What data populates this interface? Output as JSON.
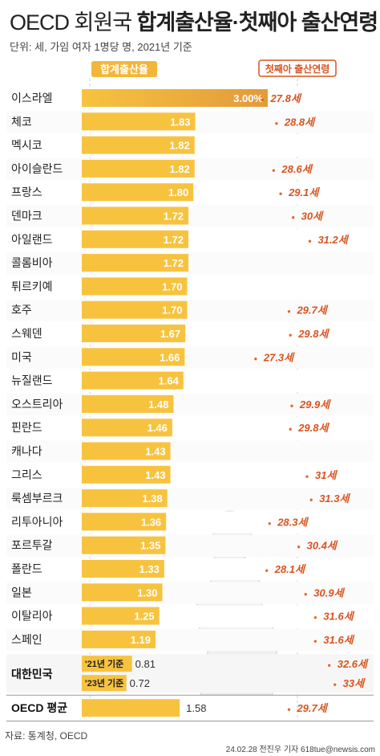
{
  "title_part1": "OECD 회원국 ",
  "title_part2": "합계출산율·첫째아 출산연령",
  "unit_note": "단위: 세, 가임 여자 1명당 명, 2021년 기준",
  "source": "자료: 통계청, OECD",
  "credit": "24.02.28 전진우 기자 618tue@newsis.com",
  "colors": {
    "bar": "#f7c33f",
    "bar_highlight": "#e8a13a",
    "age_text": "#d9531e",
    "legend_bar_bg": "#f3b63a",
    "grid_line": "#cccccc",
    "dot": "#e06a2c"
  },
  "chart_data": {
    "type": "bar",
    "legend": [
      {
        "name": "합계출산율",
        "style": "filled-tag"
      },
      {
        "name": "첫째아 출산연령",
        "style": "outlined-tag"
      }
    ],
    "bar_scale_max": 3.0,
    "age_axis_range": [
      26.5,
      34
    ],
    "rows": [
      {
        "country": "이스라엘",
        "tfr": 3.0,
        "tfr_label": "3.00%",
        "age": 27.8,
        "age_label": "27.8세",
        "highlight": true
      },
      {
        "country": "체코",
        "tfr": 1.83,
        "tfr_label": "1.83",
        "age": 28.8,
        "age_label": "28.8세"
      },
      {
        "country": "멕시코",
        "tfr": 1.82,
        "tfr_label": "1.82",
        "age": null,
        "age_label": ""
      },
      {
        "country": "아이슬란드",
        "tfr": 1.82,
        "tfr_label": "1.82",
        "age": 28.6,
        "age_label": "28.6세"
      },
      {
        "country": "프랑스",
        "tfr": 1.8,
        "tfr_label": "1.80",
        "age": 29.1,
        "age_label": "29.1세"
      },
      {
        "country": "덴마크",
        "tfr": 1.72,
        "tfr_label": "1.72",
        "age": 30,
        "age_label": "30세"
      },
      {
        "country": "아일랜드",
        "tfr": 1.72,
        "tfr_label": "1.72",
        "age": 31.2,
        "age_label": "31.2세"
      },
      {
        "country": "콜롬비아",
        "tfr": 1.72,
        "tfr_label": "1.72",
        "age": null,
        "age_label": ""
      },
      {
        "country": "튀르키예",
        "tfr": 1.7,
        "tfr_label": "1.70",
        "age": null,
        "age_label": ""
      },
      {
        "country": "호주",
        "tfr": 1.7,
        "tfr_label": "1.70",
        "age": 29.7,
        "age_label": "29.7세"
      },
      {
        "country": "스웨덴",
        "tfr": 1.67,
        "tfr_label": "1.67",
        "age": 29.8,
        "age_label": "29.8세"
      },
      {
        "country": "미국",
        "tfr": 1.66,
        "tfr_label": "1.66",
        "age": 27.3,
        "age_label": "27.3세"
      },
      {
        "country": "뉴질랜드",
        "tfr": 1.64,
        "tfr_label": "1.64",
        "age": null,
        "age_label": ""
      },
      {
        "country": "오스트리아",
        "tfr": 1.48,
        "tfr_label": "1.48",
        "age": 29.9,
        "age_label": "29.9세"
      },
      {
        "country": "핀란드",
        "tfr": 1.46,
        "tfr_label": "1.46",
        "age": 29.8,
        "age_label": "29.8세"
      },
      {
        "country": "캐나다",
        "tfr": 1.43,
        "tfr_label": "1.43",
        "age": null,
        "age_label": ""
      },
      {
        "country": "그리스",
        "tfr": 1.43,
        "tfr_label": "1.43",
        "age": 31,
        "age_label": "31세"
      },
      {
        "country": "룩셈부르크",
        "tfr": 1.38,
        "tfr_label": "1.38",
        "age": 31.3,
        "age_label": "31.3세"
      },
      {
        "country": "리투아니아",
        "tfr": 1.36,
        "tfr_label": "1.36",
        "age": 28.3,
        "age_label": "28.3세"
      },
      {
        "country": "포르투갈",
        "tfr": 1.35,
        "tfr_label": "1.35",
        "age": 30.4,
        "age_label": "30.4세"
      },
      {
        "country": "폴란드",
        "tfr": 1.33,
        "tfr_label": "1.33",
        "age": 28.1,
        "age_label": "28.1세"
      },
      {
        "country": "일본",
        "tfr": 1.3,
        "tfr_label": "1.30",
        "age": 30.9,
        "age_label": "30.9세"
      },
      {
        "country": "이탈리아",
        "tfr": 1.25,
        "tfr_label": "1.25",
        "age": 31.6,
        "age_label": "31.6세"
      },
      {
        "country": "스페인",
        "tfr": 1.19,
        "tfr_label": "1.19",
        "age": 31.6,
        "age_label": "31.6세"
      }
    ],
    "korea": {
      "country": "대한민국",
      "rows": [
        {
          "sub_label": "'21년 기준",
          "tfr": 0.81,
          "tfr_label": "0.81",
          "age": 32.6,
          "age_label": "32.6세"
        },
        {
          "sub_label": "'23년 기준",
          "tfr": 0.72,
          "tfr_label": "0.72",
          "age": 33,
          "age_label": "33세"
        }
      ]
    },
    "oecd_average": {
      "country": "OECD 평균",
      "tfr": 1.58,
      "tfr_label": "1.58",
      "age": 29.7,
      "age_label": "29.7세"
    }
  }
}
